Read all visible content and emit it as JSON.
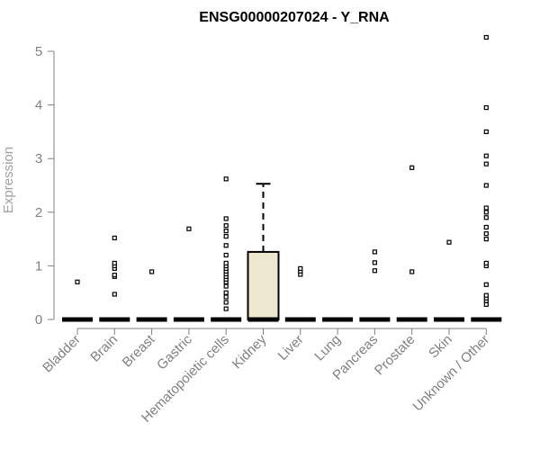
{
  "chart_data": {
    "type": "box",
    "title": "ENSG00000207024 - Y_RNA",
    "ylabel": "Expression",
    "xlabel": "",
    "ylim": [
      0,
      5.3
    ],
    "yticks": [
      "0",
      "1",
      "2",
      "3",
      "4",
      "5"
    ],
    "grid": false,
    "legend": "none",
    "colors": {
      "box_fill": "#ede7cf",
      "outline": "#000000",
      "axis": "#808080"
    },
    "categories": [
      "Bladder",
      "Brain",
      "Breast",
      "Gastric",
      "Hematopoietic cells",
      "Kidney",
      "Liver",
      "Lung",
      "Pancreas",
      "Prostate",
      "Skin",
      "Unknown / Other"
    ],
    "boxes": [
      {
        "q1": 0,
        "median": 0,
        "q3": 0,
        "whisker_low": 0,
        "whisker_high": 0,
        "outliers": [
          0.7
        ]
      },
      {
        "q1": 0,
        "median": 0,
        "q3": 0,
        "whisker_low": 0,
        "whisker_high": 0,
        "outliers": [
          0.47,
          0.8,
          0.83,
          0.95,
          1.0,
          1.05,
          1.52
        ]
      },
      {
        "q1": 0,
        "median": 0,
        "q3": 0,
        "whisker_low": 0,
        "whisker_high": 0,
        "outliers": [
          0.89
        ]
      },
      {
        "q1": 0,
        "median": 0,
        "q3": 0,
        "whisker_low": 0,
        "whisker_high": 0,
        "outliers": [
          1.69
        ]
      },
      {
        "q1": 0,
        "median": 0,
        "q3": 0,
        "whisker_low": 0,
        "whisker_high": 0,
        "outliers": [
          0.2,
          0.32,
          0.42,
          0.5,
          0.62,
          0.7,
          0.75,
          0.8,
          0.85,
          0.9,
          0.95,
          1.0,
          1.05,
          1.2,
          1.38,
          1.55,
          1.65,
          1.75,
          1.88,
          2.62
        ]
      },
      {
        "q1": 0,
        "median": 0,
        "q3": 1.26,
        "whisker_low": 0,
        "whisker_high": 2.53,
        "outliers": []
      },
      {
        "q1": 0,
        "median": 0,
        "q3": 0,
        "whisker_low": 0,
        "whisker_high": 0,
        "outliers": [
          0.84,
          0.9,
          0.95
        ]
      },
      {
        "q1": 0,
        "median": 0,
        "q3": 0,
        "whisker_low": 0,
        "whisker_high": 0,
        "outliers": []
      },
      {
        "q1": 0,
        "median": 0,
        "q3": 0,
        "whisker_low": 0,
        "whisker_high": 0,
        "outliers": [
          0.91,
          1.06,
          1.26
        ]
      },
      {
        "q1": 0,
        "median": 0,
        "q3": 0,
        "whisker_low": 0,
        "whisker_high": 0,
        "outliers": [
          0.89,
          2.83
        ]
      },
      {
        "q1": 0,
        "median": 0,
        "q3": 0,
        "whisker_low": 0,
        "whisker_high": 0,
        "outliers": [
          1.44
        ]
      },
      {
        "q1": 0,
        "median": 0,
        "q3": 0,
        "whisker_low": 0,
        "whisker_high": 0,
        "outliers": [
          0.28,
          0.35,
          0.4,
          0.45,
          0.65,
          1.0,
          1.05,
          1.5,
          1.6,
          1.72,
          1.9,
          2.0,
          2.08,
          2.5,
          2.9,
          3.05,
          3.5,
          3.95,
          5.26
        ]
      }
    ]
  }
}
